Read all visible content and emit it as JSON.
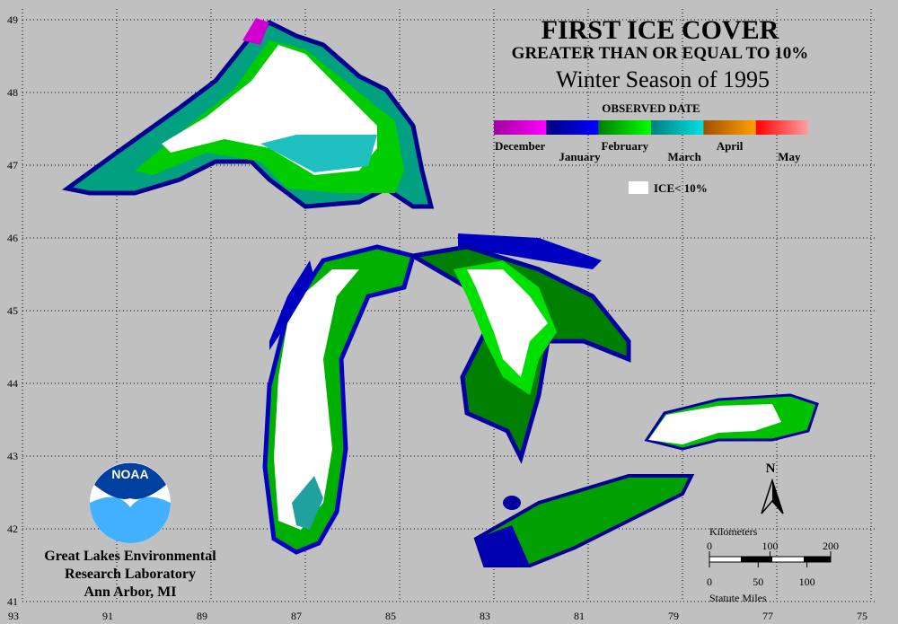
{
  "title": "FIRST ICE COVER",
  "subtitle": "GREATER THAN OR EQUAL TO 10%",
  "season": "Winter Season of 1995",
  "legend": {
    "title": "OBSERVED DATE",
    "items": [
      {
        "label": "December",
        "colors": [
          "#a000a0",
          "#ff00ff"
        ]
      },
      {
        "label": "January",
        "colors": [
          "#000080",
          "#0000ff"
        ]
      },
      {
        "label": "February",
        "colors": [
          "#008000",
          "#00ff00"
        ]
      },
      {
        "label": "March",
        "colors": [
          "#008080",
          "#00e0e0"
        ]
      },
      {
        "label": "April",
        "colors": [
          "#a05000",
          "#ffa000"
        ]
      },
      {
        "label": "May",
        "colors": [
          "#ff0000",
          "#ffa0a0"
        ]
      }
    ],
    "ice_label": "ICE< 10%"
  },
  "latitudes": [
    49,
    48,
    47,
    46,
    45,
    44,
    43,
    42,
    41
  ],
  "longitudes": [
    93,
    91,
    89,
    87,
    85,
    83,
    81,
    79,
    77,
    75
  ],
  "north": "N",
  "scale": {
    "km_title": "Kilometers",
    "km_ticks": [
      0,
      100,
      200
    ],
    "mi_ticks": [
      0,
      50,
      100
    ],
    "mi_title": "Statute Miles"
  },
  "logo_text": "NOAA",
  "credit": [
    "Great Lakes Environmental",
    "Research Laboratory",
    "Ann Arbor, MI"
  ]
}
